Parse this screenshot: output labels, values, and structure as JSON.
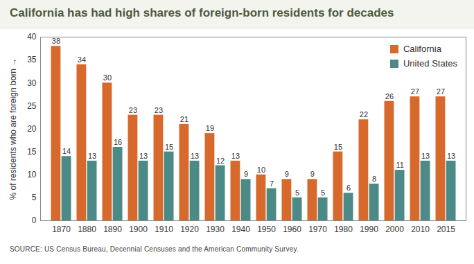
{
  "chart_data": {
    "type": "bar",
    "title": "California has had high shares of foreign-born residents for decades",
    "caption": "SOURCE: US Census Bureau, Decennial Censuses and the American Community Survey.",
    "y_label": "% of residents who are foreign born",
    "categories": [
      "1870",
      "1880",
      "1890",
      "1900",
      "1910",
      "1920",
      "1930",
      "1940",
      "1950",
      "1960",
      "1970",
      "1980",
      "1990",
      "2000",
      "2010",
      "2015"
    ],
    "series": [
      {
        "name": "California",
        "color": "#d8692d",
        "values": [
          38,
          34,
          30,
          23,
          23,
          21,
          19,
          13,
          10,
          9,
          9,
          15,
          22,
          26,
          27,
          27
        ]
      },
      {
        "name": "United States",
        "color": "#4b8a86",
        "values": [
          14,
          13,
          16,
          13,
          15,
          13,
          12,
          9,
          7,
          5,
          5,
          6,
          8,
          11,
          13,
          13
        ]
      }
    ],
    "ylim": [
      0,
      40
    ],
    "yticks": [
      0,
      5,
      10,
      15,
      20,
      25,
      30,
      35,
      40
    ],
    "grid": false,
    "legend": "top-right",
    "data_labels": true
  }
}
